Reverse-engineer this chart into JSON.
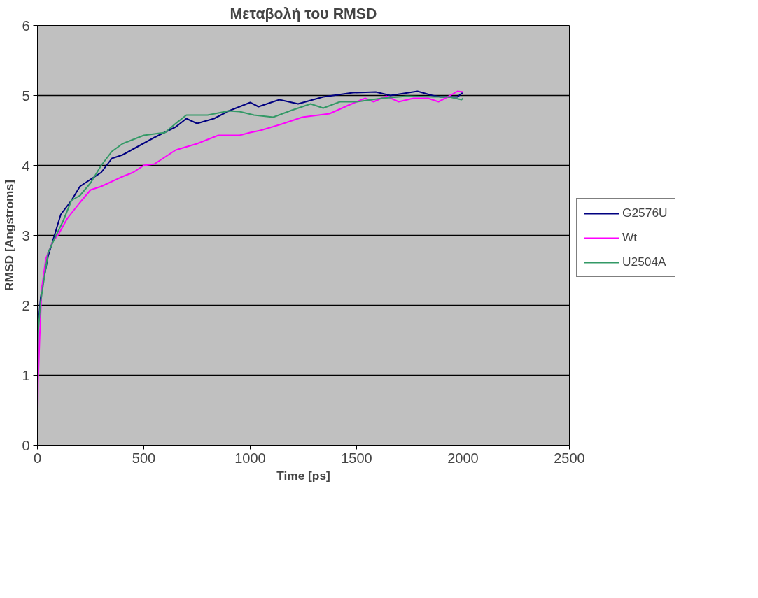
{
  "chart_data": {
    "type": "line",
    "title": "Μεταβολή του RMSD",
    "xlabel": "Time [ps]",
    "ylabel": "RMSD [Angstroms]",
    "xlim": [
      0,
      2500
    ],
    "xticks": [
      0,
      500,
      1000,
      1500,
      2000,
      2500
    ],
    "ylim": [
      0,
      6
    ],
    "yticks": [
      0,
      1,
      2,
      3,
      4,
      5,
      6
    ],
    "grid": "y",
    "legend": "right",
    "marker": "none",
    "line_style": "solid",
    "series": [
      {
        "name": "G2576U",
        "color": "#000080",
        "x": [
          0,
          3,
          15,
          25,
          50,
          80,
          110,
          160,
          200,
          300,
          350,
          400,
          460,
          550,
          650,
          700,
          750,
          830,
          900,
          950,
          1000,
          1039,
          1137,
          1225,
          1343,
          1482,
          1590,
          1659,
          1786,
          1856,
          1895,
          1974,
          1998
        ],
        "values": [
          0,
          1.7,
          2.1,
          2.3,
          2.7,
          3.0,
          3.3,
          3.5,
          3.7,
          3.9,
          4.1,
          4.15,
          4.25,
          4.4,
          4.55,
          4.67,
          4.6,
          4.67,
          4.78,
          4.84,
          4.9,
          4.84,
          4.94,
          4.88,
          4.98,
          5.04,
          5.05,
          5.0,
          5.06,
          5.0,
          4.98,
          4.98,
          5.04
        ]
      },
      {
        "name": "Wt",
        "color": "#ff00ff",
        "x": [
          0,
          3,
          10,
          20,
          40,
          70,
          100,
          140,
          200,
          250,
          300,
          400,
          450,
          500,
          550,
          650,
          750,
          850,
          950,
          1000,
          1048,
          1147,
          1245,
          1373,
          1461,
          1540,
          1580,
          1639,
          1698,
          1767,
          1835,
          1885,
          1934,
          1974,
          2000
        ],
        "values": [
          0,
          0.9,
          1.5,
          2.23,
          2.67,
          2.9,
          3.02,
          3.24,
          3.47,
          3.65,
          3.7,
          3.84,
          3.9,
          4.0,
          4.02,
          4.22,
          4.31,
          4.43,
          4.43,
          4.47,
          4.5,
          4.59,
          4.69,
          4.74,
          4.86,
          4.96,
          4.91,
          4.99,
          4.91,
          4.96,
          4.96,
          4.91,
          4.99,
          5.06,
          5.05
        ]
      },
      {
        "name": "U2504A",
        "color": "#339966",
        "x": [
          0,
          3,
          15,
          25,
          50,
          80,
          120,
          160,
          200,
          250,
          300,
          350,
          400,
          450,
          500,
          600,
          650,
          700,
          800,
          900,
          950,
          1018,
          1108,
          1196,
          1284,
          1343,
          1422,
          1501,
          1619,
          1737,
          1856,
          1934,
          1993,
          2000
        ],
        "values": [
          0,
          1.6,
          2.05,
          2.25,
          2.75,
          2.95,
          3.2,
          3.5,
          3.57,
          3.75,
          4.0,
          4.2,
          4.31,
          4.37,
          4.43,
          4.47,
          4.6,
          4.72,
          4.72,
          4.78,
          4.77,
          4.72,
          4.69,
          4.79,
          4.88,
          4.82,
          4.91,
          4.91,
          4.96,
          4.99,
          4.98,
          4.98,
          4.94,
          4.96
        ]
      }
    ]
  }
}
